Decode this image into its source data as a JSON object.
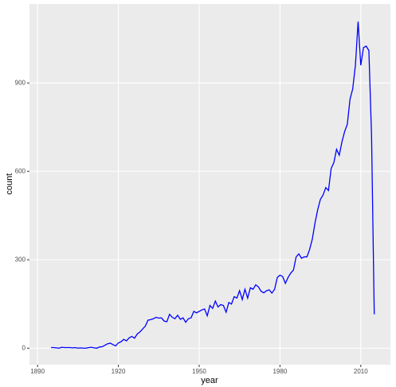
{
  "chart_data": {
    "type": "line",
    "x_label": "year",
    "y_label": "count",
    "x": [
      1895,
      1896,
      1897,
      1898,
      1899,
      1900,
      1901,
      1902,
      1903,
      1904,
      1905,
      1906,
      1907,
      1908,
      1909,
      1910,
      1911,
      1912,
      1913,
      1914,
      1915,
      1916,
      1917,
      1918,
      1919,
      1920,
      1921,
      1922,
      1923,
      1924,
      1925,
      1926,
      1927,
      1928,
      1929,
      1930,
      1931,
      1932,
      1933,
      1934,
      1935,
      1936,
      1937,
      1938,
      1939,
      1940,
      1941,
      1942,
      1943,
      1944,
      1945,
      1946,
      1947,
      1948,
      1949,
      1950,
      1951,
      1952,
      1953,
      1954,
      1955,
      1956,
      1957,
      1958,
      1959,
      1960,
      1961,
      1962,
      1963,
      1964,
      1965,
      1966,
      1967,
      1968,
      1969,
      1970,
      1971,
      1972,
      1973,
      1974,
      1975,
      1976,
      1977,
      1978,
      1979,
      1980,
      1981,
      1982,
      1983,
      1984,
      1985,
      1986,
      1987,
      1988,
      1989,
      1990,
      1991,
      1992,
      1993,
      1994,
      1995,
      1996,
      1997,
      1998,
      1999,
      2000,
      2001,
      2002,
      2003,
      2004,
      2005,
      2006,
      2007,
      2008,
      2009,
      2010,
      2011,
      2012,
      2013,
      2014,
      2015
    ],
    "series": [
      {
        "color": "#0000ff",
        "values": [
          2,
          2,
          1,
          0,
          3,
          2,
          2,
          2,
          1,
          2,
          0,
          1,
          0,
          0,
          2,
          3,
          1,
          0,
          4,
          5,
          10,
          15,
          17,
          12,
          8,
          18,
          22,
          30,
          25,
          35,
          40,
          34,
          48,
          55,
          65,
          75,
          95,
          97,
          100,
          105,
          102,
          103,
          92,
          90,
          115,
          105,
          100,
          112,
          98,
          103,
          88,
          100,
          103,
          125,
          120,
          125,
          130,
          133,
          110,
          145,
          135,
          160,
          140,
          148,
          145,
          122,
          155,
          150,
          175,
          170,
          195,
          165,
          200,
          170,
          205,
          200,
          215,
          208,
          193,
          188,
          195,
          198,
          187,
          200,
          240,
          248,
          243,
          220,
          240,
          255,
          265,
          310,
          320,
          305,
          310,
          310,
          335,
          370,
          425,
          470,
          505,
          520,
          545,
          535,
          610,
          630,
          675,
          655,
          700,
          735,
          760,
          845,
          880,
          960,
          1108,
          960,
          1020,
          1025,
          1010,
          720,
          115
        ]
      }
    ],
    "xlim": [
      1887,
      2021
    ],
    "ylim": [
      -56,
      1168
    ],
    "xticks": [
      1890,
      1920,
      1950,
      1980,
      2010
    ],
    "yticks": [
      0,
      300,
      600,
      900
    ],
    "grid": true
  }
}
